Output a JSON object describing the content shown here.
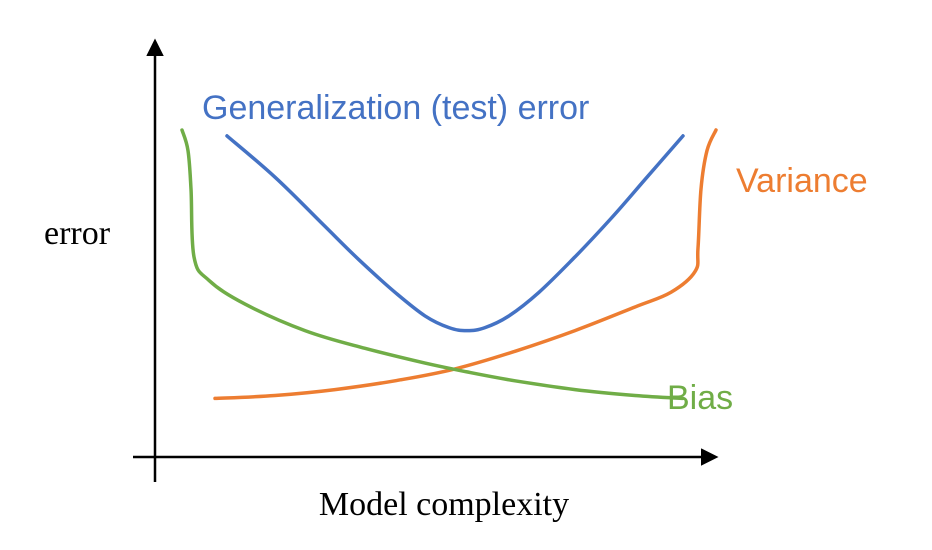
{
  "chart_data": {
    "type": "line",
    "xlabel": "Model complexity",
    "ylabel": "error",
    "xlim": [
      0,
      1
    ],
    "ylim": [
      0,
      1
    ],
    "grid": false,
    "legend": "none",
    "series": [
      {
        "name": "Generalization (test) error",
        "color": "#4472C4",
        "points": [
          [
            0.12,
            0.98
          ],
          [
            0.2,
            0.84
          ],
          [
            0.28,
            0.68
          ],
          [
            0.34,
            0.56
          ],
          [
            0.4,
            0.45
          ],
          [
            0.45,
            0.37
          ],
          [
            0.49,
            0.33
          ],
          [
            0.52,
            0.32
          ],
          [
            0.55,
            0.33
          ],
          [
            0.59,
            0.37
          ],
          [
            0.64,
            0.45
          ],
          [
            0.7,
            0.57
          ],
          [
            0.76,
            0.7
          ],
          [
            0.82,
            0.84
          ],
          [
            0.88,
            0.98
          ]
        ]
      },
      {
        "name": "Variance",
        "color": "#ED7D31",
        "points": [
          [
            0.1,
            0.09
          ],
          [
            0.2,
            0.1
          ],
          [
            0.3,
            0.12
          ],
          [
            0.4,
            0.15
          ],
          [
            0.5,
            0.19
          ],
          [
            0.6,
            0.25
          ],
          [
            0.7,
            0.32
          ],
          [
            0.8,
            0.4
          ],
          [
            0.86,
            0.45
          ],
          [
            0.9,
            0.52
          ],
          [
            0.905,
            0.6
          ],
          [
            0.91,
            0.8
          ],
          [
            0.92,
            0.93
          ],
          [
            0.935,
            1.0
          ]
        ]
      },
      {
        "name": "Bias",
        "color": "#70AD47",
        "points": [
          [
            0.045,
            1.0
          ],
          [
            0.055,
            0.93
          ],
          [
            0.06,
            0.8
          ],
          [
            0.065,
            0.57
          ],
          [
            0.09,
            0.49
          ],
          [
            0.15,
            0.41
          ],
          [
            0.25,
            0.32
          ],
          [
            0.35,
            0.26
          ],
          [
            0.45,
            0.21
          ],
          [
            0.52,
            0.18
          ],
          [
            0.6,
            0.15
          ],
          [
            0.7,
            0.12
          ],
          [
            0.8,
            0.1
          ],
          [
            0.88,
            0.09
          ]
        ]
      }
    ]
  }
}
